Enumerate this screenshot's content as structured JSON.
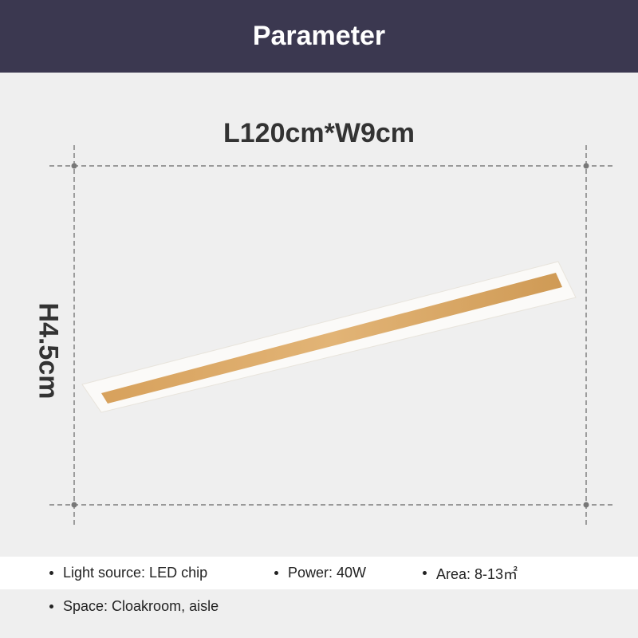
{
  "header": {
    "title": "Parameter"
  },
  "dimensions": {
    "length_width": "L120cm*W9cm",
    "height": "H4.5cm"
  },
  "specs": [
    {
      "label": "Light source: LED chip"
    },
    {
      "label": "Power: 40W"
    },
    {
      "label": "Area: 8-13㎡"
    },
    {
      "label": "Space: Cloakroom, aisle"
    }
  ],
  "colors": {
    "header_bg": "#3b3850",
    "background": "#efefef",
    "wood": "#d9a865"
  }
}
